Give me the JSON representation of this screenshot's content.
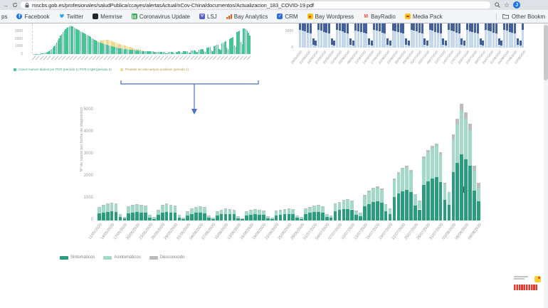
{
  "browser": {
    "url": "mscbs.gob.es/profesionales/saludPublica/ccayes/alertasActual/nCov-China/documentos/Actualizacion_183_COVID-19.pdf",
    "avatar_letter": "J",
    "bookmarks": [
      {
        "label": "ps",
        "icon": "apps-partial"
      },
      {
        "label": "Facebook",
        "icon": "facebook"
      },
      {
        "label": "Twitter",
        "icon": "twitter"
      },
      {
        "label": "Memrise",
        "icon": "memrise"
      },
      {
        "label": "Coronavirus Update",
        "icon": "coronavirus-update"
      },
      {
        "label": "LSJ",
        "icon": "lsj"
      },
      {
        "label": "Bay Analytics",
        "icon": "bay-analytics"
      },
      {
        "label": "CRM",
        "icon": "crm"
      },
      {
        "label": "Bay Wordpress",
        "icon": "bay-wordpress"
      },
      {
        "label": "BayRadio",
        "icon": "bayradio"
      },
      {
        "label": "Media Pack",
        "icon": "media-pack"
      }
    ],
    "other_bookmarks_label": "Other Bookm"
  },
  "chart_data": [
    {
      "id": "epidemic-curve-full-period",
      "type": "bar",
      "stacked": true,
      "y_ticks": [
        0,
        1000,
        2000,
        3000
      ],
      "x_labels_legible": false,
      "x_tick_count": 58,
      "legend": [
        {
          "label": "Casos nuevos diarios por PCR (periodo 1) PCR o IgM (periodo 2)",
          "color": "#45c495",
          "text_color": "#3aa182"
        },
        {
          "label": "Pruebas de anticuerpos positivas (periodo 1)",
          "color": "#f0d98c",
          "text_color": "#b3973d"
        }
      ],
      "series": [
        {
          "name": "Casos nuevos diarios por PCR (periodo 1) PCR o IgM (periodo 2)",
          "color": "#45c495",
          "values": [
            5,
            8,
            12,
            15,
            20,
            30,
            45,
            60,
            85,
            120,
            160,
            220,
            300,
            400,
            520,
            650,
            800,
            1000,
            1250,
            1500,
            1800,
            2100,
            2400,
            2650,
            2900,
            3100,
            3300,
            3450,
            3550,
            3650,
            3700,
            3650,
            3600,
            3500,
            3400,
            3300,
            3200,
            3100,
            3000,
            2900,
            2800,
            2700,
            2600,
            2500,
            2400,
            2300,
            2200,
            2100,
            2000,
            1900,
            1800,
            1700,
            1600,
            1500,
            1450,
            1400,
            1350,
            1300,
            1250,
            1200,
            1150,
            1100,
            1050,
            1000,
            950,
            900,
            850,
            800,
            780,
            760,
            740,
            720,
            700,
            680,
            650,
            620,
            600,
            580,
            560,
            540,
            520,
            500,
            490,
            480,
            470,
            460,
            440,
            420,
            400,
            390,
            380,
            370,
            360,
            350,
            340,
            330,
            320,
            310,
            300,
            290,
            280,
            270,
            260,
            255,
            250,
            125,
            120,
            250,
            260,
            270,
            280,
            145,
            140,
            310,
            320,
            330,
            340,
            175,
            170,
            370,
            380,
            390,
            400,
            210,
            200,
            440,
            460,
            480,
            500,
            260,
            250,
            580,
            600,
            640,
            680,
            340,
            300,
            800,
            850,
            900,
            950,
            480,
            400,
            1060,
            1120,
            1180,
            1250,
            660,
            560,
            1400,
            1480,
            1560,
            1650,
            840,
            700,
            1940,
            2050,
            2160,
            2280,
            1150,
            950,
            2900,
            3000,
            3100,
            1600,
            1300,
            3350,
            3400,
            3300,
            3100,
            2800,
            2400
          ]
        },
        {
          "name": "Pruebas de anticuerpos positivas (periodo 1)",
          "color": "#f0d98c",
          "values": [
            0,
            0,
            0,
            0,
            0,
            0,
            0,
            0,
            0,
            0,
            0,
            0,
            0,
            0,
            0,
            0,
            0,
            0,
            0,
            0,
            0,
            0,
            0,
            0,
            0,
            0,
            0,
            0,
            0,
            0,
            0,
            0,
            0,
            0,
            0,
            0,
            0,
            0,
            0,
            0,
            0,
            0,
            0,
            0,
            0,
            0,
            0,
            0,
            0,
            0,
            0,
            0,
            0,
            200,
            300,
            400,
            500,
            550,
            600,
            650,
            700,
            700,
            680,
            660,
            640,
            620,
            600,
            580,
            560,
            540,
            520,
            500,
            470,
            440,
            410,
            380,
            350,
            320,
            290,
            260,
            230,
            200,
            170,
            140,
            110,
            80,
            50,
            20,
            0,
            0,
            0,
            0,
            0,
            0,
            0,
            0,
            0,
            0,
            0,
            0,
            0,
            0,
            0,
            0,
            0,
            0,
            0,
            0,
            0,
            0,
            0,
            0,
            0,
            0,
            0,
            0,
            0,
            0,
            0,
            0,
            0,
            0,
            0,
            0,
            0,
            0,
            0,
            0,
            0,
            0,
            0,
            0,
            0,
            0,
            0,
            0,
            0,
            0,
            0,
            0,
            0,
            0,
            0,
            0,
            0,
            0,
            0,
            0,
            0,
            0,
            0,
            0,
            0,
            0,
            0,
            0,
            0,
            0,
            0,
            0,
            0,
            0,
            0,
            0,
            0,
            0,
            0,
            0,
            0,
            0,
            0,
            0
          ]
        }
      ]
    },
    {
      "id": "daily-tests-blue",
      "type": "bar",
      "stacked": true,
      "y_ticks": [
        0,
        5000
      ],
      "clipped_top": true,
      "x_labels": [
        "18/05/2020",
        "21/05/2020",
        "24/05/2020",
        "27/05/2020",
        "30/05/2020",
        "02/06/2020",
        "05/06/2020",
        "08/06/2020",
        "11/06/2020",
        "14/06/2020",
        "17/06/2020",
        "20/06/2020",
        "23/06/2020",
        "26/06/2020",
        "29/06/2020",
        "02/07/2020",
        "05/07/2020",
        "08/07/2020",
        "11/07/2020",
        "14/07/2020",
        "17/07/2020",
        "20/07/2020",
        "23/07/2020",
        "26/07/2020",
        "29/07/2020",
        "01/08/2020",
        "04/08/2020",
        "07/08/2020",
        "10/08/2020"
      ],
      "series": [
        {
          "name": "serie clara",
          "color": "#c5d7eb",
          "values": [
            5400,
            5150,
            4950,
            4650,
            4350,
            820,
            620,
            5350,
            5120,
            4880,
            4560,
            4280,
            780,
            590,
            5420,
            5180,
            4920,
            4600,
            4320,
            850,
            640,
            5300,
            5080,
            4850,
            4520,
            4250,
            800,
            600,
            5380,
            5140,
            4900,
            4580,
            4300,
            830,
            620,
            5320,
            5100,
            4860,
            4540,
            4260,
            790,
            600,
            5400,
            5160,
            4930,
            4610,
            4330,
            840,
            630,
            5340,
            5110,
            4870,
            4550,
            4270,
            810,
            610,
            5410,
            5170,
            4940,
            4620,
            4340,
            850,
            640,
            5330,
            5090,
            4850,
            4530,
            4250,
            800,
            600,
            5390,
            5150,
            4910,
            4590,
            4310,
            830,
            620,
            5350,
            5120,
            4880,
            4560,
            4280,
            810,
            610,
            5400
          ]
        },
        {
          "name": "serie oscura",
          "color": "#42609e",
          "values": [
            4000,
            4000,
            4000,
            4000,
            4000,
            2050,
            1620,
            4000,
            4000,
            4000,
            4000,
            4000,
            1980,
            1560,
            4000,
            4000,
            4000,
            4000,
            4000,
            2080,
            1640,
            4000,
            4000,
            4000,
            4000,
            4000,
            2000,
            1580,
            4000,
            4000,
            4000,
            4000,
            4000,
            2060,
            1620,
            4000,
            4000,
            4000,
            4000,
            4000,
            1990,
            1570,
            4000,
            4000,
            4000,
            4000,
            4000,
            2070,
            1630,
            4000,
            4000,
            4000,
            4000,
            4000,
            2010,
            1590,
            4000,
            4000,
            4000,
            4000,
            4000,
            2080,
            1640,
            4000,
            4000,
            4000,
            4000,
            4000,
            2000,
            1580,
            4000,
            4000,
            4000,
            4000,
            4000,
            2060,
            1620,
            4000,
            4000,
            4000,
            4000,
            4000,
            2020,
            1590,
            4000
          ]
        }
      ]
    },
    {
      "id": "casos-por-fecha-diagnostico",
      "type": "bar",
      "stacked": true,
      "ylabel": "Nº de casos por fecha de diagnóstico",
      "ylim": [
        0,
        5000
      ],
      "y_ticks": [
        0,
        1000,
        2000,
        3000,
        4000,
        5000
      ],
      "x_labels": [
        "11/05/2020",
        "14/05/2020",
        "17/05/2020",
        "20/05/2020",
        "23/05/2020",
        "26/05/2020",
        "29/05/2020",
        "01/06/2020",
        "04/06/2020",
        "07/06/2020",
        "10/06/2020",
        "13/06/2020",
        "16/06/2020",
        "19/06/2020",
        "22/06/2020",
        "25/06/2020",
        "28/06/2020",
        "01/07/2020",
        "04/07/2020",
        "07/07/2020",
        "10/07/2020",
        "13/07/2020",
        "16/07/2020",
        "19/07/2020",
        "22/07/2020",
        "25/07/2020",
        "28/07/2020",
        "31/07/2020",
        "03/08/2020",
        "06/08/2020",
        "09/08/2020"
      ],
      "legend": [
        {
          "label": "Sintomáticos",
          "color": "#2a9d7f",
          "text_color": "#7d8489"
        },
        {
          "label": "Asintomáticos",
          "color": "#a3d9c7",
          "text_color": "#7d8489"
        },
        {
          "label": "Desconocido",
          "color": "#bdbdbd",
          "text_color": "#7d8489"
        }
      ],
      "series": [
        {
          "name": "Sintomáticos",
          "color": "#2a9d7f",
          "values": [
            320,
            360,
            400,
            425,
            395,
            155,
            90,
            330,
            360,
            380,
            370,
            350,
            135,
            80,
            250,
            360,
            395,
            370,
            355,
            130,
            75,
            230,
            305,
            340,
            350,
            330,
            120,
            65,
            230,
            275,
            295,
            285,
            275,
            110,
            60,
            235,
            260,
            280,
            270,
            250,
            105,
            65,
            240,
            265,
            285,
            295,
            280,
            115,
            80,
            305,
            340,
            375,
            385,
            360,
            165,
            120,
            420,
            470,
            510,
            530,
            500,
            250,
            190,
            640,
            750,
            830,
            860,
            805,
            415,
            305,
            1060,
            1220,
            1330,
            1390,
            1280,
            665,
            500,
            1620,
            1790,
            1900,
            1955,
            1730,
            950,
            725,
            2200,
            2600,
            3000,
            2760,
            2470,
            1350,
            880
          ]
        },
        {
          "name": "Asintomáticos",
          "color": "#a3d9c7",
          "values": [
            290,
            330,
            365,
            380,
            350,
            140,
            75,
            300,
            330,
            345,
            335,
            320,
            120,
            65,
            220,
            330,
            350,
            335,
            325,
            115,
            60,
            180,
            245,
            268,
            278,
            258,
            95,
            50,
            180,
            215,
            235,
            225,
            215,
            85,
            45,
            185,
            200,
            220,
            210,
            200,
            80,
            50,
            190,
            205,
            225,
            235,
            220,
            90,
            65,
            245,
            268,
            285,
            295,
            270,
            125,
            92,
            315,
            350,
            380,
            395,
            370,
            185,
            138,
            470,
            550,
            615,
            635,
            595,
            310,
            225,
            775,
            900,
            985,
            1020,
            940,
            490,
            370,
            1180,
            1300,
            1380,
            1425,
            1260,
            690,
            530,
            1480,
            1740,
            2000,
            1850,
            1640,
            900,
            590
          ]
        },
        {
          "name": "Desconocido",
          "color": "#bdbdbd",
          "values": [
            10,
            10,
            15,
            15,
            15,
            5,
            5,
            10,
            10,
            15,
            15,
            10,
            5,
            5,
            10,
            10,
            15,
            15,
            10,
            5,
            5,
            10,
            10,
            12,
            12,
            12,
            5,
            5,
            10,
            10,
            10,
            10,
            10,
            5,
            5,
            10,
            10,
            10,
            10,
            10,
            5,
            5,
            10,
            10,
            10,
            10,
            10,
            5,
            5,
            10,
            12,
            20,
            20,
            20,
            10,
            8,
            25,
            30,
            30,
            35,
            30,
            15,
            12,
            40,
            50,
            55,
            55,
            50,
            25,
            20,
            65,
            80,
            85,
            90,
            80,
            45,
            30,
            100,
            110,
            120,
            120,
            110,
            60,
            45,
            220,
            260,
            300,
            290,
            290,
            250,
            230
          ]
        }
      ]
    }
  ],
  "annotation": {
    "type": "bracket-arrow",
    "color": "#4472c4",
    "meaning": "periodo ampliado en el grafico principal"
  },
  "watermark": {
    "colors": {
      "bell": "#f6ce2f",
      "text_blocks": "#e23b30",
      "lines": "#c4c4c4"
    },
    "text_legible": false
  }
}
